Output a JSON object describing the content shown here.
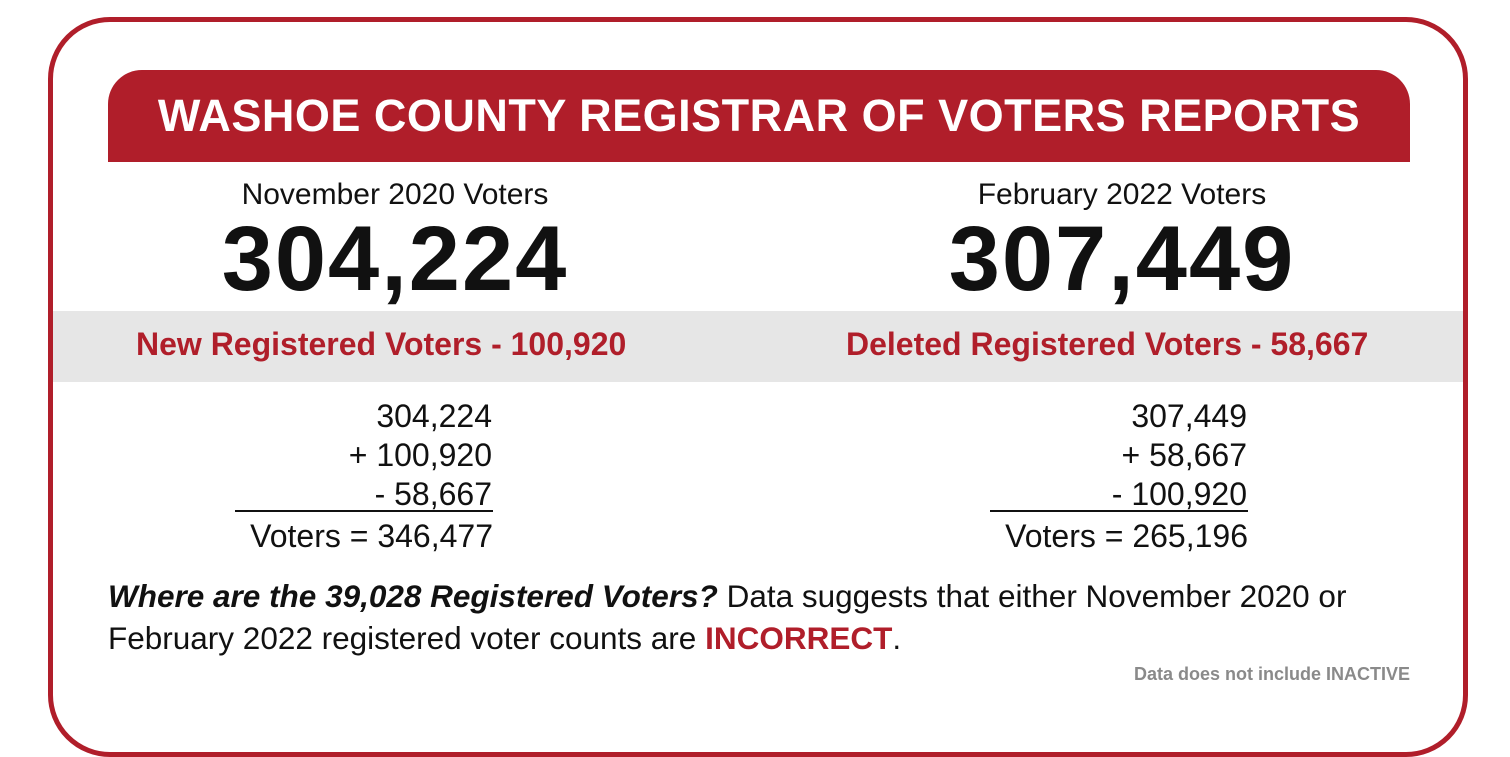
{
  "banner": {
    "title": "WASHOE COUNTY REGISTRAR OF VOTERS REPORTS"
  },
  "left": {
    "heading": "November 2020 Voters",
    "count": "304,224",
    "band_label": "New Registered Voters - 100,920",
    "math": [
      "304,224",
      "+ 100,920",
      "- 58,667"
    ],
    "total": "Voters = 346,477"
  },
  "right": {
    "heading": "February 2022 Voters",
    "count": "307,449",
    "band_label": "Deleted Registered Voters - 58,667",
    "math": [
      "307,449",
      "+ 58,667",
      "- 100,920"
    ],
    "total": "Voters = 265,196"
  },
  "question": {
    "bold_part": "Where are the 39,028 Registered Voters?",
    "middle_part": " Data suggests that either November 2020 or February 2022 registered voter counts are ",
    "red_part": "INCORRECT",
    "end_part": "."
  },
  "footnote": "Data does not include INACTIVE",
  "colors": {
    "accent_red": "#b01e2a",
    "band_gray": "#e6e6e6",
    "footnote_gray": "#8a8a8a"
  }
}
